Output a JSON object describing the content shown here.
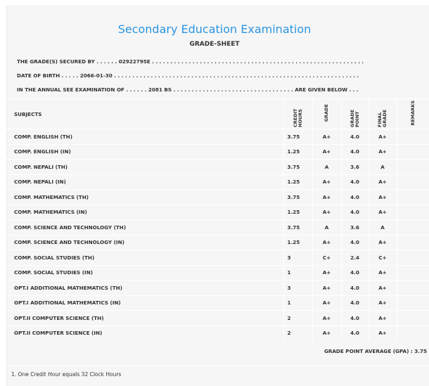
{
  "header": {
    "title": "Secondary Education Examination",
    "subtitle": "GRADE-SHEET"
  },
  "info": {
    "secured_by": "THE GRADE(S) SECURED BY . . . . . .  02922795E . . . . . . . . . . . . . . . . . . . . . . . . . . . . . . . . . . . . . . . . . . . . . . . . . . . . . . . . . .",
    "dob": "DATE OF BIRTH . . . . .  2066-01-30 . . . . . . . . . . . . . . . . . . . . . . . . . . . . . . . . . . . . . . . . . . . . . . . . . . . . . . . . . . . . . . . . . . .",
    "exam": "IN THE ANNUAL SEE EXAMINATION OF . . . . . .  2081 BS . . . . . . . . . . . . . . . . . . . . . . . . . . . . . . . . . ARE GIVEN BELOW . . ."
  },
  "table": {
    "headers": [
      "SUBJECTS",
      "CREDIT HOURS",
      "GRADE",
      "GRADE POINT",
      "FINAL GRADE",
      "REMARKS"
    ],
    "rows": [
      [
        "COMP. ENGLISH (TH)",
        "3.75",
        "A+",
        "4.0",
        "A+"
      ],
      [
        "COMP. ENGLISH (IN)",
        "1.25",
        "A+",
        "4.0",
        "A+"
      ],
      [
        "COMP. NEPALI (TH)",
        "3.75",
        "A",
        "3.6",
        "A"
      ],
      [
        "COMP. NEPALI (IN)",
        "1.25",
        "A+",
        "4.0",
        "A+"
      ],
      [
        "COMP. MATHEMATICS (TH)",
        "3.75",
        "A+",
        "4.0",
        "A+"
      ],
      [
        "COMP. MATHEMATICS (IN)",
        "1.25",
        "A+",
        "4.0",
        "A+"
      ],
      [
        "COMP. SCIENCE AND TECHNOLOGY (TH)",
        "3.75",
        "A",
        "3.6",
        "A"
      ],
      [
        "COMP. SCIENCE AND TECHNOLOGY (IN)",
        "1.25",
        "A+",
        "4.0",
        "A+"
      ],
      [
        "COMP. SOCIAL STUDIES (TH)",
        "3",
        "C+",
        "2.4",
        "C+"
      ],
      [
        "COMP. SOCIAL STUDIES (IN)",
        "1",
        "A+",
        "4.0",
        "A+"
      ],
      [
        "OPT.I ADDITIONAL MATHEMATICS (TH)",
        "3",
        "A+",
        "4.0",
        "A+"
      ],
      [
        "OPT.I ADDITIONAL MATHEMATICS (IN)",
        "1",
        "A+",
        "4.0",
        "A+"
      ],
      [
        "OPT.II COMPUTER SCIENCE (TH)",
        "2",
        "A+",
        "4.0",
        "A+"
      ],
      [
        "OPT.II COMPUTER SCIENCE (IN)",
        "2",
        "A+",
        "4.0",
        "A+"
      ]
    ]
  },
  "gpa": "GRADE POINT AVERAGE (GPA) : 3.75",
  "note": "1. One Credit Hour equals 32 Clock Hours"
}
